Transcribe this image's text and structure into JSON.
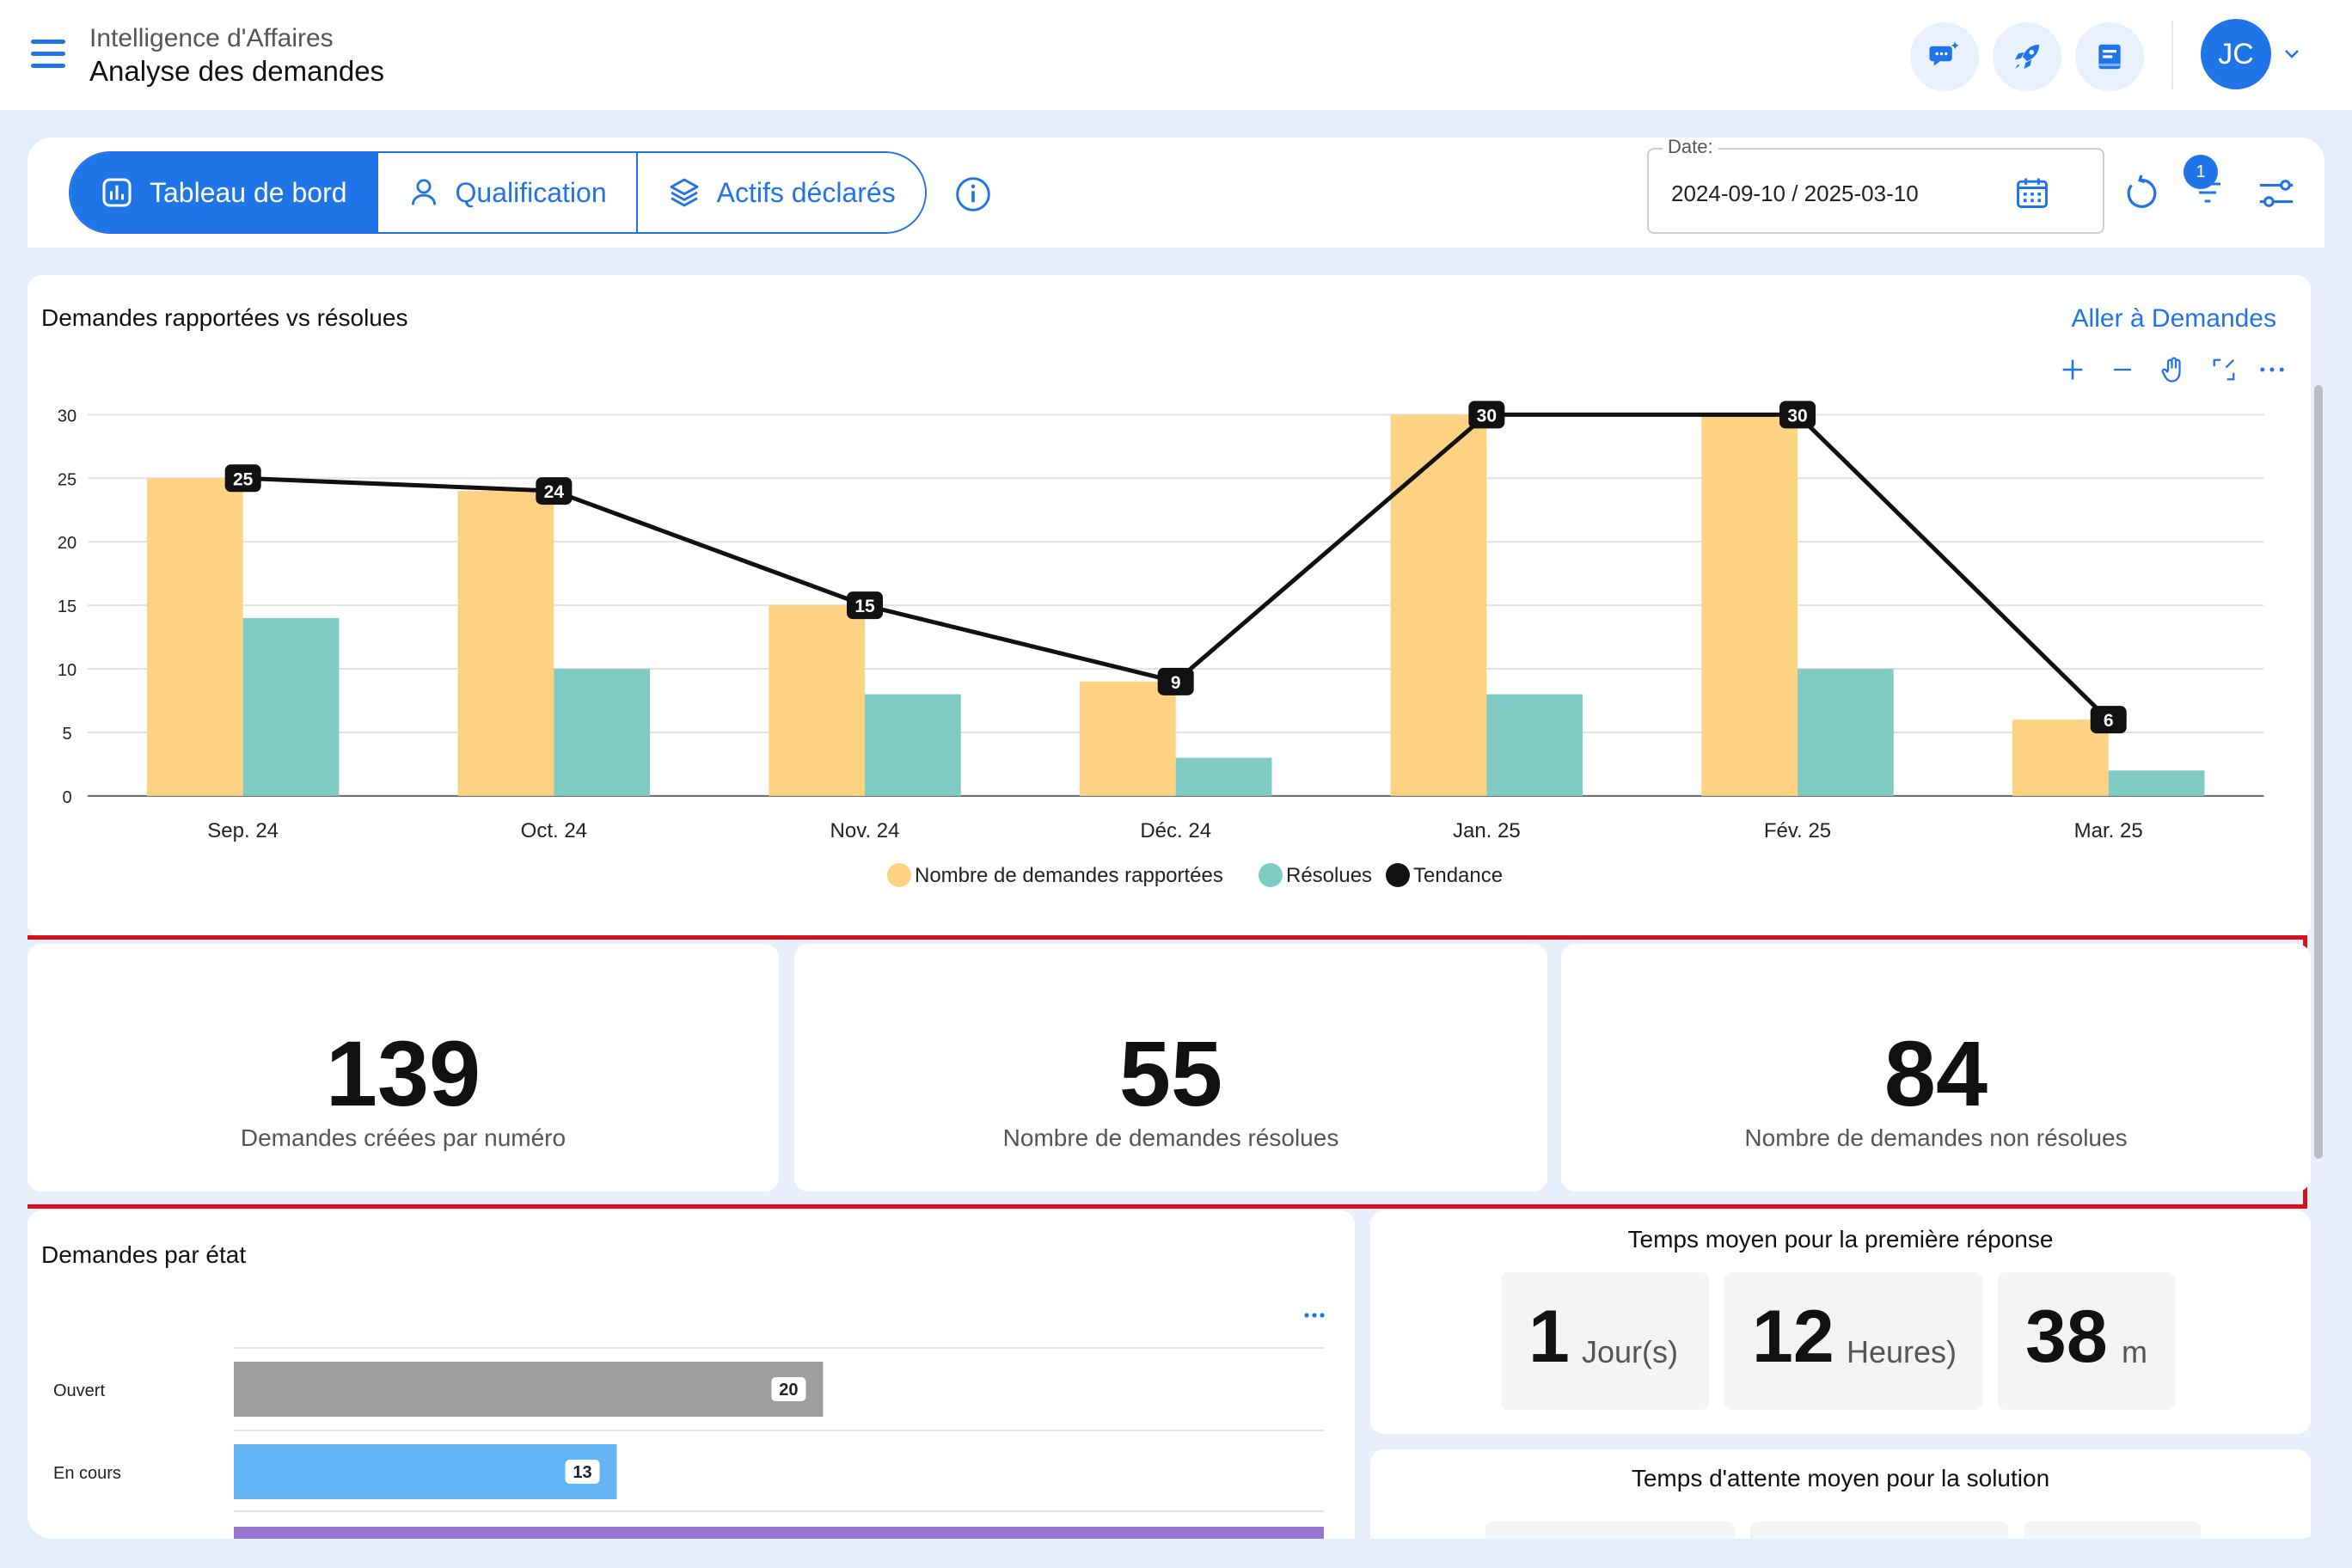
{
  "header": {
    "breadcrumb_parent": "Intelligence d'Affaires",
    "page_title": "Analyse des demandes",
    "avatar_initials": "JC"
  },
  "tabs": [
    {
      "label": "Tableau de bord",
      "active": true
    },
    {
      "label": "Qualification",
      "active": false
    },
    {
      "label": "Actifs déclarés",
      "active": false
    }
  ],
  "filters": {
    "date_label": "Date:",
    "date_value": "2024-09-10 / 2025-03-10",
    "filter_count": "1"
  },
  "main_chart": {
    "title": "Demandes rapportées vs résolues",
    "link": "Aller à Demandes",
    "tools": [
      "plus-icon",
      "minus-icon",
      "hand-icon",
      "expand-icon",
      "more-icon"
    ]
  },
  "chart_data": [
    {
      "type": "bar",
      "categories": [
        "Sep. 24",
        "Oct. 24",
        "Nov. 24",
        "Déc. 24",
        "Jan. 25",
        "Fév. 25",
        "Mar. 25"
      ],
      "series": [
        {
          "name": "Nombre de demandes rapportées",
          "kind": "bar",
          "color": "#fdd283",
          "values": [
            25,
            24,
            15,
            9,
            30,
            30,
            6
          ]
        },
        {
          "name": "Résolues",
          "kind": "bar",
          "color": "#80cbc4",
          "values": [
            14,
            10,
            8,
            3,
            8,
            10,
            2
          ]
        },
        {
          "name": "Tendance",
          "kind": "line",
          "color": "#111111",
          "values": [
            25,
            24,
            15,
            9,
            30,
            30,
            6
          ]
        }
      ],
      "yticks": [
        "0",
        "5",
        "10",
        "15",
        "20",
        "25",
        "30"
      ],
      "ylim": [
        0,
        30
      ],
      "grid": true,
      "legend": "bottom-center"
    },
    {
      "type": "bar",
      "orientation": "horizontal",
      "title": "Demandes par état",
      "categories": [
        "Ouvert",
        "En cours"
      ],
      "values": [
        20,
        13
      ],
      "colors": [
        "#9e9e9e",
        "#64b5f6",
        "#9575cd"
      ],
      "xlim": [
        0,
        37
      ]
    }
  ],
  "kpis": [
    {
      "value": "139",
      "label": "Demandes créées par numéro"
    },
    {
      "value": "55",
      "label": "Nombre de demandes résolues"
    },
    {
      "value": "84",
      "label": "Nombre de demandes non résolues"
    }
  ],
  "state_card": {
    "title": "Demandes par état"
  },
  "first_response": {
    "title": "Temps moyen pour la première réponse",
    "parts": [
      {
        "value": "1",
        "unit": "Jour(s)"
      },
      {
        "value": "12",
        "unit": "Heures)"
      },
      {
        "value": "38",
        "unit": "m"
      }
    ]
  },
  "solution_wait": {
    "title": "Temps d'attente moyen pour la solution"
  }
}
